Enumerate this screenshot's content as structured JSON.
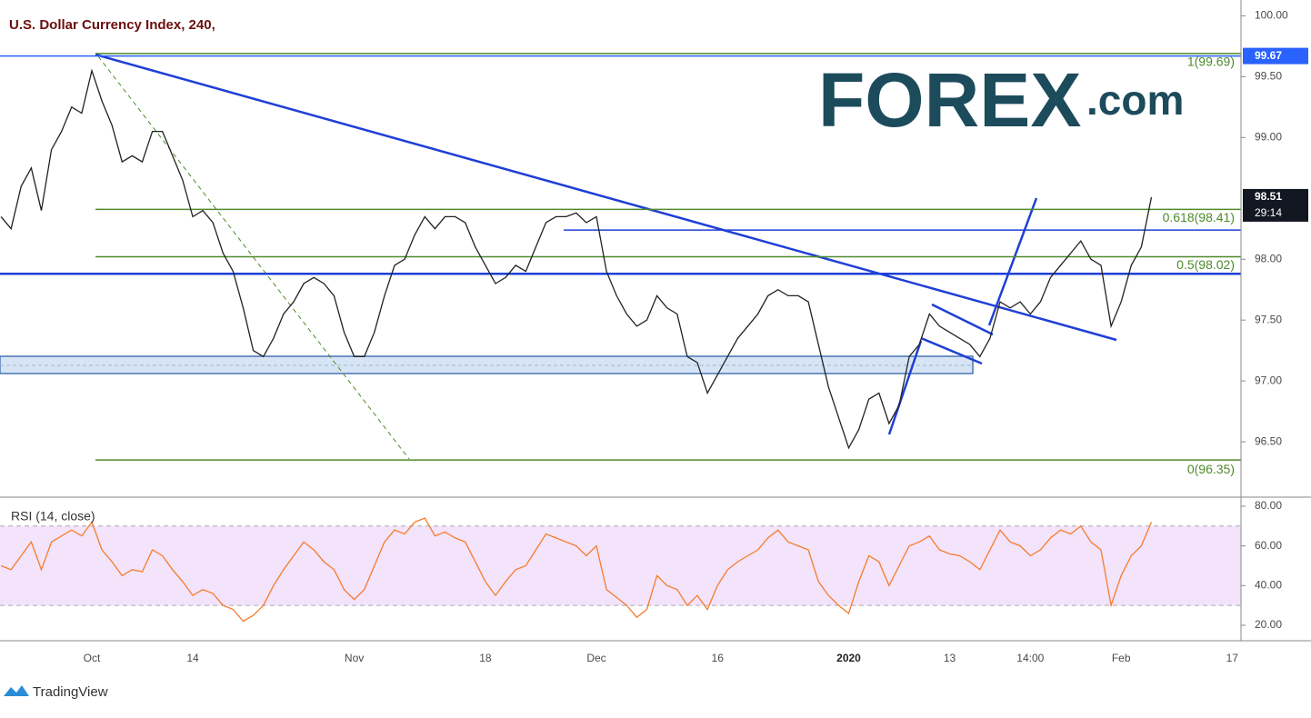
{
  "title": "U.S. Dollar Currency Index, 240,",
  "logo": {
    "main": "FOREX",
    "suffix": ".com"
  },
  "footer": "TradingView",
  "chart_data": [
    {
      "type": "line",
      "categories": [
        null,
        null,
        null,
        null,
        null,
        null,
        null,
        null,
        null,
        "Oct",
        null,
        null,
        null,
        null,
        null,
        null,
        null,
        null,
        null,
        "14",
        null,
        null,
        null,
        null,
        null,
        null,
        null,
        null,
        null,
        null,
        null,
        null,
        null,
        null,
        null,
        "Nov",
        null,
        null,
        null,
        null,
        null,
        null,
        null,
        null,
        null,
        null,
        null,
        null,
        "18",
        null,
        null,
        null,
        null,
        null,
        null,
        null,
        null,
        null,
        null,
        "Dec",
        null,
        null,
        null,
        null,
        null,
        null,
        null,
        null,
        null,
        null,
        null,
        "16",
        null,
        null,
        null,
        null,
        null,
        null,
        null,
        null,
        null,
        null,
        null,
        null,
        "2020",
        null,
        null,
        null,
        null,
        null,
        null,
        null,
        null,
        null,
        "13",
        null,
        null,
        null,
        null,
        null,
        null,
        null,
        "14:00",
        null,
        null,
        null,
        null,
        null,
        null,
        null,
        null,
        "Feb",
        null,
        null,
        null,
        null,
        null,
        null,
        null,
        null,
        null,
        null,
        "17"
      ],
      "values": [
        98.35,
        98.25,
        98.6,
        98.75,
        98.4,
        98.9,
        99.05,
        99.25,
        99.2,
        99.55,
        99.3,
        99.1,
        98.8,
        98.85,
        98.8,
        99.05,
        99.05,
        98.85,
        98.65,
        98.35,
        98.4,
        98.3,
        98.05,
        97.9,
        97.6,
        97.25,
        97.2,
        97.35,
        97.55,
        97.65,
        97.8,
        97.85,
        97.8,
        97.7,
        97.4,
        97.2,
        97.2,
        97.4,
        97.7,
        97.95,
        98.0,
        98.2,
        98.35,
        98.25,
        98.35,
        98.35,
        98.3,
        98.1,
        97.95,
        97.8,
        97.85,
        97.95,
        97.9,
        98.1,
        98.3,
        98.35,
        98.35,
        98.38,
        98.3,
        98.35,
        97.9,
        97.7,
        97.55,
        97.45,
        97.5,
        97.7,
        97.6,
        97.55,
        97.2,
        97.15,
        96.9,
        97.05,
        97.2,
        97.35,
        97.45,
        97.55,
        97.7,
        97.75,
        97.7,
        97.7,
        97.65,
        97.3,
        96.95,
        96.7,
        96.45,
        96.6,
        96.85,
        96.9,
        96.65,
        96.8,
        97.2,
        97.3,
        97.55,
        97.45,
        97.4,
        97.35,
        97.3,
        97.2,
        97.35,
        97.65,
        97.6,
        97.65,
        97.55,
        97.65,
        97.85,
        97.95,
        98.05,
        98.15,
        98.0,
        97.95,
        97.45,
        97.65,
        97.95,
        98.1,
        98.51,
        null,
        null,
        null,
        null,
        null,
        null,
        null,
        null
      ],
      "color": "#222222",
      "ylim": [
        96.06,
        100.13
      ],
      "yticks": [
        {
          "value": 100,
          "label": "100.00"
        },
        {
          "value": 99.5,
          "label": "99.50"
        },
        {
          "value": 99,
          "label": "99.00"
        },
        {
          "value": 98,
          "label": "98.00"
        },
        {
          "value": 97.5,
          "label": "97.50"
        },
        {
          "value": 97,
          "label": "97.00"
        },
        {
          "value": 96.5,
          "label": "96.50"
        }
      ],
      "fib_levels": [
        {
          "value": 99.69,
          "label": "1(99.69)"
        },
        {
          "value": 98.41,
          "label": "0.618(98.41)"
        },
        {
          "value": 98.02,
          "label": "0.5(98.02)"
        },
        {
          "value": 96.35,
          "label": "0(96.35)"
        }
      ],
      "fib_color": "#4f8a2b",
      "support_lines": [
        97.88,
        98.24
      ],
      "line_color": "#1f3fd6",
      "price_labels": [
        {
          "value": 99.67,
          "label": "99.67",
          "color": "#2962ff"
        },
        {
          "value": 98.51,
          "label": "98.51",
          "countdown": "29:14",
          "color": "#131722"
        }
      ]
    },
    {
      "type": "line",
      "title": "RSI (14, close)",
      "values": [
        50,
        48,
        55,
        62,
        48,
        62,
        65,
        68,
        65,
        72,
        58,
        52,
        45,
        48,
        47,
        58,
        55,
        48,
        42,
        35,
        38,
        36,
        30,
        28,
        22,
        25,
        30,
        40,
        48,
        55,
        62,
        58,
        52,
        48,
        38,
        33,
        38,
        50,
        62,
        68,
        66,
        72,
        74,
        65,
        67,
        64,
        62,
        52,
        42,
        35,
        42,
        48,
        50,
        58,
        66,
        64,
        62,
        60,
        55,
        60,
        38,
        34,
        30,
        24,
        28,
        45,
        40,
        38,
        30,
        35,
        28,
        40,
        48,
        52,
        55,
        58,
        64,
        68,
        62,
        60,
        58,
        42,
        35,
        30,
        26,
        42,
        55,
        52,
        40,
        50,
        60,
        62,
        65,
        58,
        56,
        55,
        52,
        48,
        58,
        68,
        62,
        60,
        55,
        58,
        64,
        68,
        66,
        70,
        62,
        58,
        30,
        45,
        55,
        60,
        72,
        null,
        null,
        null,
        null,
        null,
        null,
        null,
        null
      ],
      "color": "#f57c2b",
      "ylim": [
        12.2,
        84.1
      ],
      "yticks": [
        {
          "value": 80,
          "label": "80.00"
        },
        {
          "value": 60,
          "label": "60.00"
        },
        {
          "value": 40,
          "label": "40.00"
        },
        {
          "value": 20,
          "label": "20.00"
        }
      ],
      "band": [
        30,
        70
      ],
      "band_color": "#f3e3fb"
    }
  ]
}
